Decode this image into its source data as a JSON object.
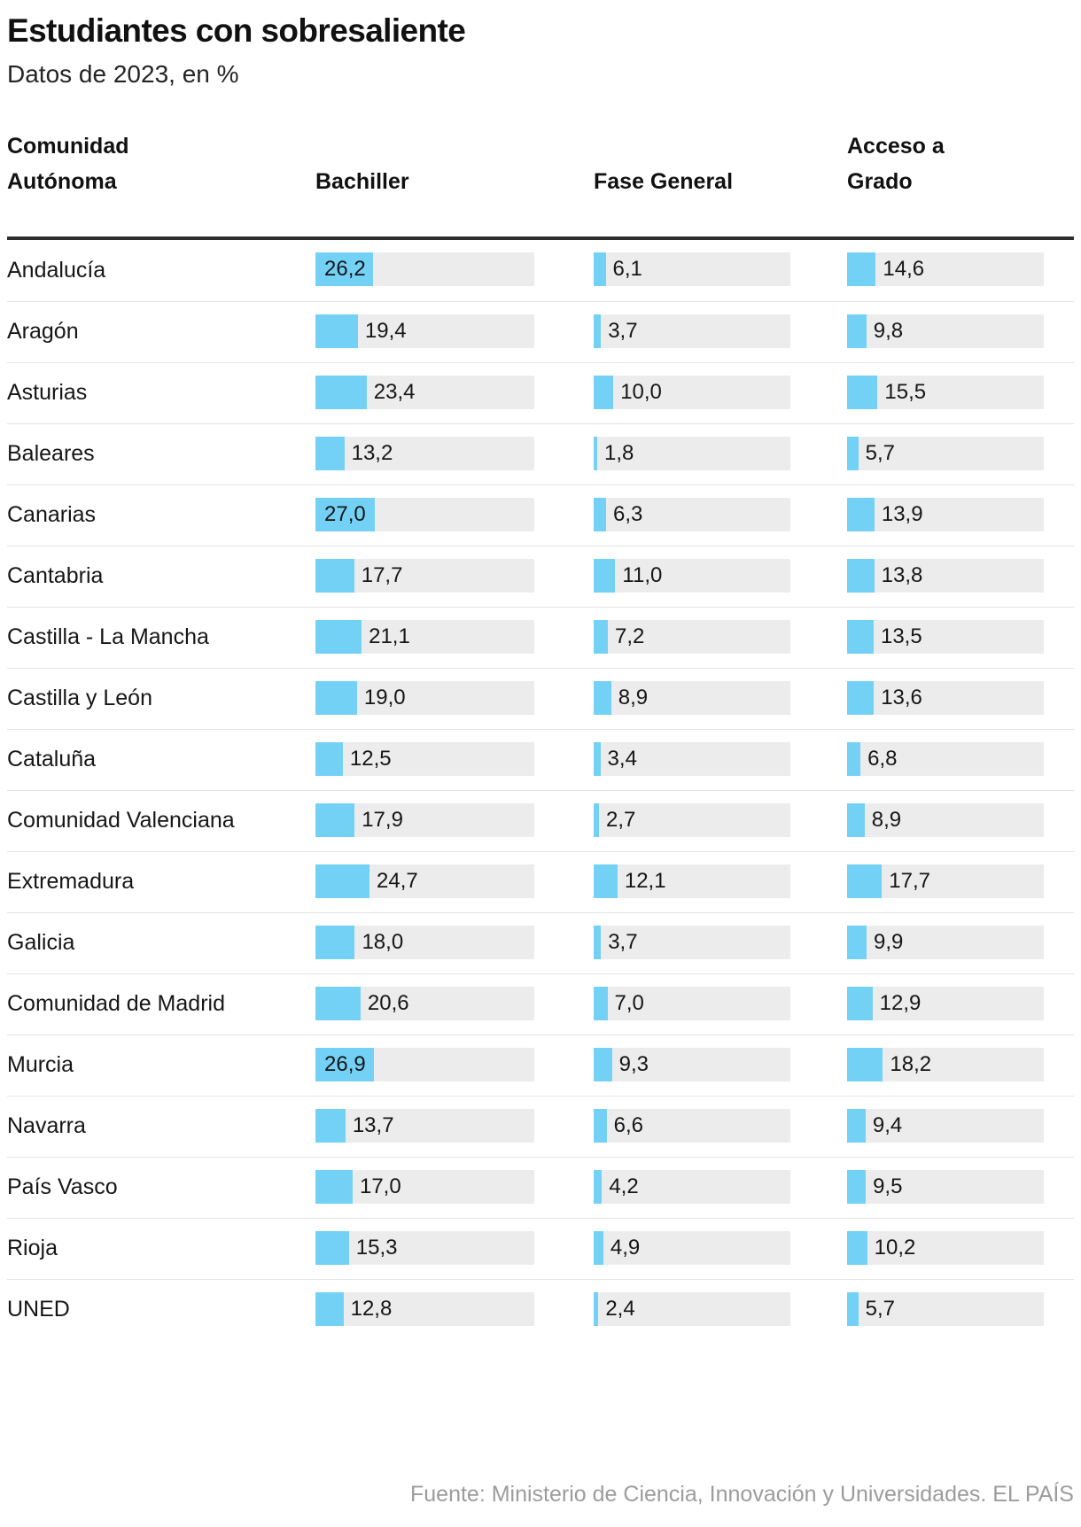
{
  "header": {
    "title": "Estudiantes con sobresaliente",
    "subtitle": "Datos de 2023, en %"
  },
  "table": {
    "columns": [
      "Comunidad\nAutónoma",
      "Bachiller",
      "Fase General",
      "Acceso a\nGrado"
    ]
  },
  "chart_data": {
    "type": "bar",
    "orientation": "horizontal",
    "title": "Estudiantes con sobresaliente",
    "subtitle": "Datos de 2023, en %",
    "unit": "%",
    "value_format": "decimal-comma-1",
    "axis_max": 100,
    "grid": false,
    "legend_position": "column-headers",
    "categories": [
      "Andalucía",
      "Aragón",
      "Asturias",
      "Baleares",
      "Canarias",
      "Cantabria",
      "Castilla - La Mancha",
      "Castilla y León",
      "Cataluña",
      "Comunidad Valenciana",
      "Extremadura",
      "Galicia",
      "Comunidad de Madrid",
      "Murcia",
      "Navarra",
      "País Vasco",
      "Rioja",
      "UNED"
    ],
    "series": [
      {
        "name": "Bachiller",
        "values": [
          26.2,
          19.4,
          23.4,
          13.2,
          27.0,
          17.7,
          21.1,
          19.0,
          12.5,
          17.9,
          24.7,
          18.0,
          20.6,
          26.9,
          13.7,
          17.0,
          15.3,
          12.8
        ]
      },
      {
        "name": "Fase General",
        "values": [
          6.1,
          3.7,
          10.0,
          1.8,
          6.3,
          11.0,
          7.2,
          8.9,
          3.4,
          2.7,
          12.1,
          3.7,
          7.0,
          9.3,
          6.6,
          4.2,
          4.9,
          2.4
        ]
      },
      {
        "name": "Acceso a Grado",
        "values": [
          14.6,
          9.8,
          15.5,
          5.7,
          13.9,
          13.8,
          13.5,
          13.6,
          6.8,
          8.9,
          17.7,
          9.9,
          12.9,
          18.2,
          9.4,
          9.5,
          10.2,
          5.7
        ]
      }
    ]
  },
  "colors": {
    "bar": "#74d1f6",
    "track": "#ececec",
    "header_rule": "#2e2e2e",
    "row_separator": "#e3e3e3",
    "text": "#121212",
    "source_text": "#9c9c9c"
  },
  "footer": {
    "source": "Fuente: Ministerio de Ciencia, Innovación y Universidades. EL PAÍS"
  }
}
